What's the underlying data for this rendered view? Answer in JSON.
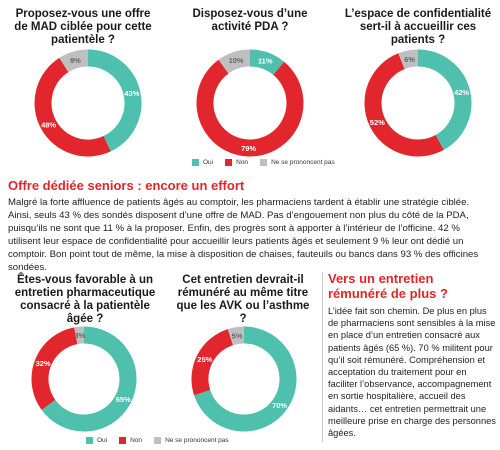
{
  "colors": {
    "oui": "#4fbfae",
    "non": "#e2262d",
    "nsp": "#bfbfbf",
    "heading": "#e0262c"
  },
  "legend_top": {
    "oui": "Oui",
    "non": "Non",
    "nsp": "Ne se prononcent pas"
  },
  "legend_bottom": {
    "oui": "Oui",
    "non": "Non",
    "nsp": "Ne se prononcent pas"
  },
  "section1": {
    "heading": "Offre dédiée seniors : encore un effort",
    "text": "Malgré la forte affluence de patients âgés au comptoir, les pharmaciens tardent à établir une stratégie ciblée. Ainsi, seuls 43 % des sondés disposent d’une offre de MAD. Pas d’engouement non plus du côté de la PDA, puisqu’ils ne sont que 11 % à la proposer. Enfin, des progrès sont à apporter à l’intérieur de l’officine. 42 % utilisent leur espace de confidentialité pour accueillir leurs patients âgés et seulement 9 % leur ont dédié un comptoir. Bon point tout de même, la mise à disposition de chaises, fauteuils ou bancs dans 93 % des officines sondées."
  },
  "section2": {
    "heading": "Vers un entretien rémunéré de plus ?",
    "text": "L’idée fait son chemin. De plus en plus de pharmaciens sont sensibles à la mise en place d’un entretien consacré aux patients âgés (65 %). 70 % militent pour qu’il soit rémunéré. Compréhension et acceptation du traitement pour en faciliter l’observance, accompagnement en sortie hospitalière, accueil des aidants… cet entretien permettrait une meilleure prise en charge des personnes âgées."
  },
  "chart_data": [
    {
      "type": "pie",
      "title": "Proposez-vous une offre de MAD ciblée pour cette patientèle ?",
      "categories": [
        "Oui",
        "Non",
        "Ne se prononcent pas"
      ],
      "values": [
        43,
        48,
        9
      ],
      "labels": [
        "43%",
        "48%",
        "9%"
      ]
    },
    {
      "type": "pie",
      "title": "Disposez-vous d’une activité PDA ?",
      "categories": [
        "Oui",
        "Non",
        "Ne se prononcent pas"
      ],
      "values": [
        11,
        79,
        10
      ],
      "labels": [
        "11%",
        "79%",
        "10%"
      ]
    },
    {
      "type": "pie",
      "title": "L’espace de confidentialité sert-il à accueillir ces patients ?",
      "categories": [
        "Oui",
        "Non",
        "Ne se prononcent pas"
      ],
      "values": [
        42,
        52,
        6
      ],
      "labels": [
        "42%",
        "52%",
        "6%"
      ]
    },
    {
      "type": "pie",
      "title": "Êtes-vous favorable à un entretien pharmaceutique consacré à la patientèle âgée ?",
      "categories": [
        "Oui",
        "Non",
        "Ne se prononcent pas"
      ],
      "values": [
        65,
        32,
        3
      ],
      "labels": [
        "65%",
        "32%",
        "3%"
      ]
    },
    {
      "type": "pie",
      "title": "Cet entretien devrait-il rémunéré au même titre que les AVK ou l’asthme ?",
      "categories": [
        "Oui",
        "Non",
        "Ne se prononcent pas"
      ],
      "values": [
        70,
        25,
        5
      ],
      "labels": [
        "70%",
        "25%",
        "5%"
      ]
    }
  ]
}
